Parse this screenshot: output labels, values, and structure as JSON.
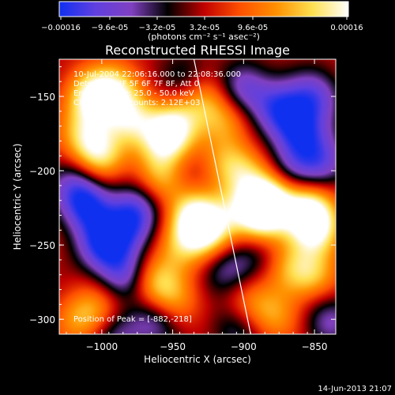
{
  "colorbar": {
    "ticks": [
      "-0.00016",
      "-9.6e-05",
      "-3.2e-05",
      "3.2e-05",
      "9.6e-05",
      "0.00016"
    ],
    "unit_label": "(photons cm⁻² s⁻¹ asec⁻²)",
    "range": [
      -0.00016,
      0.00016
    ],
    "stops": [
      "#1030f0",
      "#6040e0",
      "#8040c0",
      "#000000",
      "#c00000",
      "#ff5000",
      "#ff9000",
      "#ffe050",
      "#ffffff"
    ]
  },
  "chart_data": {
    "type": "heatmap",
    "title": "Reconstructed RHESSI Image",
    "xlabel": "Heliocentric X (arcsec)",
    "ylabel": "Heliocentric Y (arcsec)",
    "xlim": [
      -1030,
      -835
    ],
    "ylim": [
      -310,
      -125
    ],
    "xticks": [
      -1000,
      -950,
      -900,
      -850
    ],
    "xtick_labels": [
      "−1000",
      "−950",
      "−900",
      "−850"
    ],
    "yticks": [
      -150,
      -200,
      -250,
      -300
    ],
    "ytick_labels": [
      "−150",
      "−200",
      "−250",
      "−300"
    ],
    "annotations": [
      "10-Jul-2004 22:06:16.000 to 22:08:36.000",
      "Detectors: 4F 5F 6F 7F 8F, Att 0",
      "Energy Range: 25.0 - 50.0 keV",
      "Clean     Total counts: 2.12E+03"
    ],
    "peak_label": "Position of Peak = [-882,-218]",
    "peak": [
      -882,
      -218
    ],
    "limb_line": [
      [
        -935,
        -125
      ],
      [
        -895,
        -310
      ]
    ],
    "blobs": [
      {
        "x": -1008,
        "y": -150,
        "v": 1.0
      },
      {
        "x": -990,
        "y": -145,
        "v": 0.85
      },
      {
        "x": -980,
        "y": -165,
        "v": 0.8
      },
      {
        "x": -1002,
        "y": -190,
        "v": 0.9
      },
      {
        "x": -1012,
        "y": -175,
        "v": 0.7
      },
      {
        "x": -955,
        "y": -180,
        "v": 0.95
      },
      {
        "x": -948,
        "y": -168,
        "v": 0.8
      },
      {
        "x": -960,
        "y": -205,
        "v": 0.7
      },
      {
        "x": -935,
        "y": -230,
        "v": 1.05
      },
      {
        "x": -925,
        "y": -242,
        "v": 0.9
      },
      {
        "x": -945,
        "y": -250,
        "v": 0.6
      },
      {
        "x": -930,
        "y": -150,
        "v": 0.7
      },
      {
        "x": -912,
        "y": -165,
        "v": 0.55
      },
      {
        "x": -915,
        "y": -195,
        "v": 0.5
      },
      {
        "x": -963,
        "y": -275,
        "v": 0.8
      },
      {
        "x": -950,
        "y": -290,
        "v": 0.6
      },
      {
        "x": -1015,
        "y": -300,
        "v": 0.6
      },
      {
        "x": -1000,
        "y": -292,
        "v": 0.45
      },
      {
        "x": -882,
        "y": -218,
        "v": 1.2
      },
      {
        "x": -888,
        "y": -232,
        "v": 1.0
      },
      {
        "x": -855,
        "y": -225,
        "v": 1.1
      },
      {
        "x": -848,
        "y": -240,
        "v": 0.95
      },
      {
        "x": -852,
        "y": -270,
        "v": 0.7
      },
      {
        "x": -870,
        "y": -265,
        "v": 0.55
      },
      {
        "x": -900,
        "y": -200,
        "v": 0.55
      },
      {
        "x": -905,
        "y": -225,
        "v": 0.45
      },
      {
        "x": -897,
        "y": -290,
        "v": 0.5
      },
      {
        "x": -878,
        "y": -298,
        "v": 0.55
      },
      {
        "x": -1010,
        "y": -225,
        "v": -0.9
      },
      {
        "x": -1000,
        "y": -250,
        "v": -0.95
      },
      {
        "x": -985,
        "y": -270,
        "v": -0.8
      },
      {
        "x": -982,
        "y": -240,
        "v": -0.7
      },
      {
        "x": -1018,
        "y": -210,
        "v": -0.7
      },
      {
        "x": -975,
        "y": -225,
        "v": -0.75
      },
      {
        "x": -942,
        "y": -140,
        "v": -0.6
      },
      {
        "x": -900,
        "y": -145,
        "v": -0.8
      },
      {
        "x": -875,
        "y": -158,
        "v": -0.9
      },
      {
        "x": -850,
        "y": -150,
        "v": -0.8
      },
      {
        "x": -860,
        "y": -175,
        "v": -0.95
      },
      {
        "x": -845,
        "y": -195,
        "v": -0.75
      },
      {
        "x": -912,
        "y": -265,
        "v": -0.55
      },
      {
        "x": -905,
        "y": -305,
        "v": -0.55
      },
      {
        "x": -962,
        "y": -300,
        "v": -0.75
      },
      {
        "x": -990,
        "y": -310,
        "v": -0.6
      },
      {
        "x": -940,
        "y": -200,
        "v": -0.25
      },
      {
        "x": -868,
        "y": -200,
        "v": -0.5
      },
      {
        "x": -890,
        "y": -258,
        "v": -0.4
      },
      {
        "x": -840,
        "y": -300,
        "v": -0.6
      }
    ],
    "grid": false
  },
  "footer": {
    "timestamp": "14-Jun-2013 21:07"
  }
}
